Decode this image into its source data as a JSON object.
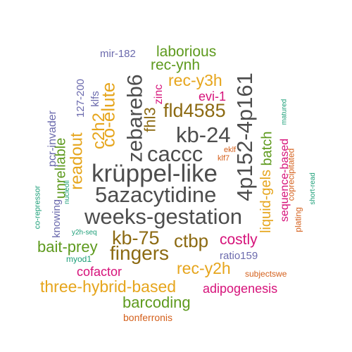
{
  "cloud": {
    "words": [
      {
        "text": "krüppel-like",
        "color": "#4d4d4d"
      },
      {
        "text": "weeks-gestation",
        "color": "#4d4d4d"
      },
      {
        "text": "5azacytidine",
        "color": "#4d4d4d"
      },
      {
        "text": "caccc",
        "color": "#4d4d4d"
      },
      {
        "text": "kb-24",
        "color": "#4d4d4d"
      },
      {
        "text": "4p152-4p161",
        "color": "#4d4d4d"
      },
      {
        "text": "zebareb6",
        "color": "#4d4d4d"
      },
      {
        "text": "fingers",
        "color": "#8c6a12"
      },
      {
        "text": "kb-75",
        "color": "#8c6a12"
      },
      {
        "text": "ctbp",
        "color": "#8c6a12"
      },
      {
        "text": "fld4585",
        "color": "#8c6a12"
      },
      {
        "text": "fhl3",
        "color": "#8c6a12"
      },
      {
        "text": "co-elute",
        "color": "#e6a51c"
      },
      {
        "text": "c2h2",
        "color": "#e6a51c"
      },
      {
        "text": "readout",
        "color": "#e6a51c"
      },
      {
        "text": "rec-y3h",
        "color": "#e6a51c"
      },
      {
        "text": "rec-y2h",
        "color": "#e6a51c"
      },
      {
        "text": "three-hybrid-based",
        "color": "#e6a51c"
      },
      {
        "text": "liquid-gels",
        "color": "#e6a51c"
      },
      {
        "text": "bait-prey",
        "color": "#5e9a1e"
      },
      {
        "text": "barcoding",
        "color": "#5e9a1e"
      },
      {
        "text": "laborious",
        "color": "#5e9a1e"
      },
      {
        "text": "rec-ynh",
        "color": "#5e9a1e"
      },
      {
        "text": "batch",
        "color": "#5e9a1e"
      },
      {
        "text": "unreliable",
        "color": "#5e9a1e"
      },
      {
        "text": "costly",
        "color": "#d6127a"
      },
      {
        "text": "adipogenesis",
        "color": "#d6127a"
      },
      {
        "text": "cofactor",
        "color": "#d6127a"
      },
      {
        "text": "evi-1",
        "color": "#d6127a"
      },
      {
        "text": "zinc",
        "color": "#d6127a"
      },
      {
        "text": "sequence-based",
        "color": "#d6127a"
      },
      {
        "text": "pcr-invader",
        "color": "#6b6aad"
      },
      {
        "text": "knowing",
        "color": "#6b6aad"
      },
      {
        "text": "127-200",
        "color": "#6b6aad"
      },
      {
        "text": "klfs",
        "color": "#6b6aad"
      },
      {
        "text": "mir-182",
        "color": "#6b6aad"
      },
      {
        "text": "ratio159",
        "color": "#6b6aad"
      },
      {
        "text": "bonferronis",
        "color": "#d4601c"
      },
      {
        "text": "subjectswe",
        "color": "#d4601c"
      },
      {
        "text": "eklf",
        "color": "#d4601c"
      },
      {
        "text": "klf7",
        "color": "#d4601c"
      },
      {
        "text": "coprecipitated",
        "color": "#d4601c"
      },
      {
        "text": "plating",
        "color": "#d4601c"
      },
      {
        "text": "myod1",
        "color": "#1b9e77"
      },
      {
        "text": "y2h-seq",
        "color": "#1b9e77"
      },
      {
        "text": "co-repressor",
        "color": "#1b9e77"
      },
      {
        "text": "nucleoli",
        "color": "#1b9e77"
      },
      {
        "text": "matured",
        "color": "#1b9e77"
      },
      {
        "text": "short-read",
        "color": "#1b9e77"
      }
    ]
  }
}
